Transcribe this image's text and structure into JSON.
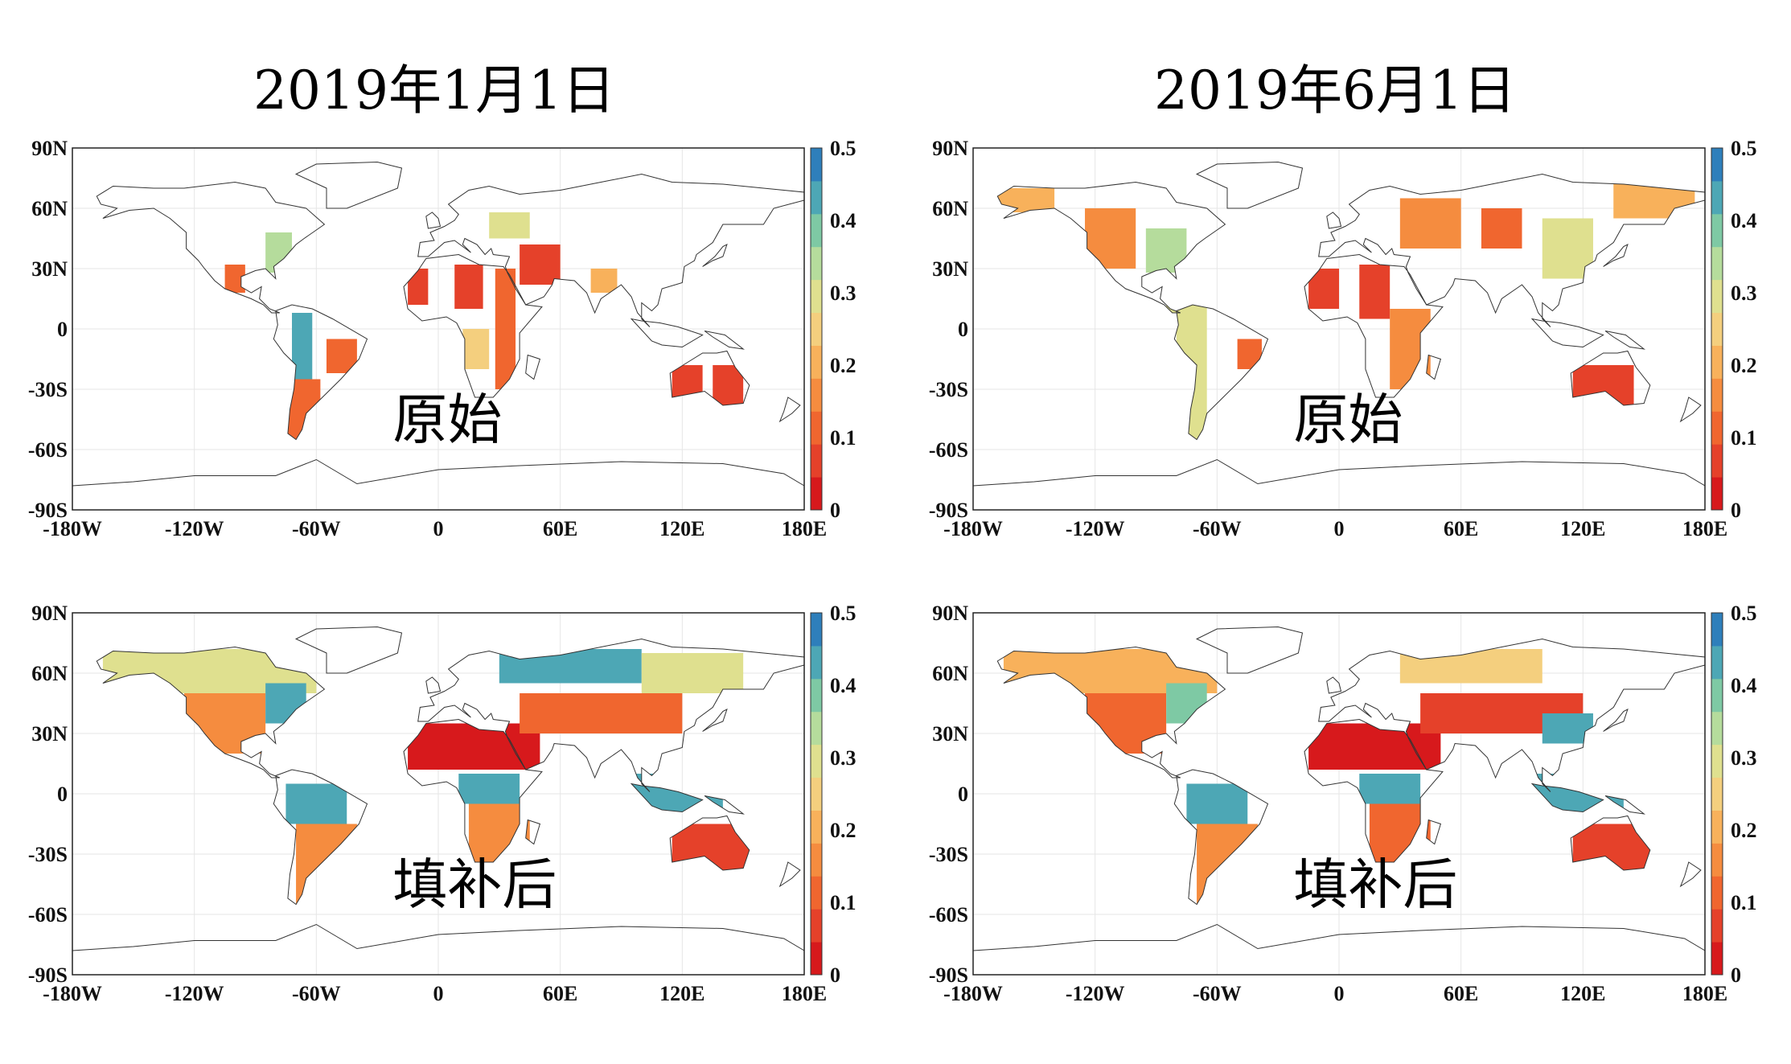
{
  "column_titles": [
    "2019年1月1日",
    "2019年6月1日"
  ],
  "panel_labels": {
    "original": "原始",
    "filled": "填补后"
  },
  "colorbar": {
    "min": 0,
    "max": 0.5,
    "tick_labels": [
      "0.5",
      "0.4",
      "0.3",
      "0.2",
      "0.1",
      "0"
    ],
    "colors": [
      "#d7191c",
      "#e5412a",
      "#f0662f",
      "#f58c3f",
      "#f8b15b",
      "#f4cf7e",
      "#dfe08f",
      "#b5dc9c",
      "#7ec9a4",
      "#4da7b5",
      "#2e7fbb"
    ]
  },
  "chart_data": [
    {
      "type": "heatmap",
      "panel": "top-left",
      "date": "2019年1月1日",
      "label": "原始",
      "x_ticks": [
        "-180W",
        "-120W",
        "-60W",
        "0",
        "60E",
        "120E",
        "180E"
      ],
      "y_ticks": [
        "90N",
        "60N",
        "30N",
        "0",
        "-30S",
        "-60S",
        "-90S"
      ],
      "xlim": [
        -180,
        180
      ],
      "ylim": [
        -90,
        90
      ],
      "clim": [
        0,
        0.5
      ],
      "data_regions": [
        {
          "lon": [
            -105,
            -95
          ],
          "lat": [
            18,
            32
          ],
          "value": 0.12
        },
        {
          "lon": [
            -85,
            -72
          ],
          "lat": [
            28,
            48
          ],
          "value": 0.35
        },
        {
          "lon": [
            -72,
            -62
          ],
          "lat": [
            -25,
            8
          ],
          "value": 0.45
        },
        {
          "lon": [
            -75,
            -58
          ],
          "lat": [
            -55,
            -25
          ],
          "value": 0.12
        },
        {
          "lon": [
            -55,
            -40
          ],
          "lat": [
            -22,
            -5
          ],
          "value": 0.12
        },
        {
          "lon": [
            -15,
            -5
          ],
          "lat": [
            12,
            30
          ],
          "value": 0.05
        },
        {
          "lon": [
            8,
            22
          ],
          "lat": [
            10,
            32
          ],
          "value": 0.05
        },
        {
          "lon": [
            28,
            38
          ],
          "lat": [
            -30,
            30
          ],
          "value": 0.12
        },
        {
          "lon": [
            12,
            25
          ],
          "lat": [
            -20,
            0
          ],
          "value": 0.25
        },
        {
          "lon": [
            40,
            60
          ],
          "lat": [
            22,
            42
          ],
          "value": 0.08
        },
        {
          "lon": [
            75,
            88
          ],
          "lat": [
            18,
            30
          ],
          "value": 0.2
        },
        {
          "lon": [
            115,
            130
          ],
          "lat": [
            -35,
            -18
          ],
          "value": 0.05
        },
        {
          "lon": [
            135,
            150
          ],
          "lat": [
            -38,
            -18
          ],
          "value": 0.05
        },
        {
          "lon": [
            25,
            45
          ],
          "lat": [
            45,
            58
          ],
          "value": 0.3
        }
      ]
    },
    {
      "type": "heatmap",
      "panel": "top-right",
      "date": "2019年6月1日",
      "label": "原始",
      "x_ticks": [
        "-180W",
        "-120W",
        "-60W",
        "0",
        "60E",
        "120E",
        "180E"
      ],
      "y_ticks": [
        "90N",
        "60N",
        "30N",
        "0",
        "-30S",
        "-60S",
        "-90S"
      ],
      "xlim": [
        -180,
        180
      ],
      "ylim": [
        -90,
        90
      ],
      "clim": [
        0,
        0.5
      ],
      "data_regions": [
        {
          "lon": [
            -170,
            -140
          ],
          "lat": [
            58,
            70
          ],
          "value": 0.22
        },
        {
          "lon": [
            -125,
            -100
          ],
          "lat": [
            30,
            60
          ],
          "value": 0.18
        },
        {
          "lon": [
            -95,
            -75
          ],
          "lat": [
            28,
            50
          ],
          "value": 0.35
        },
        {
          "lon": [
            -85,
            -65
          ],
          "lat": [
            5,
            20
          ],
          "value": 0.3
        },
        {
          "lon": [
            -80,
            -65
          ],
          "lat": [
            -55,
            5
          ],
          "value": 0.3
        },
        {
          "lon": [
            -50,
            -38
          ],
          "lat": [
            -20,
            -5
          ],
          "value": 0.12
        },
        {
          "lon": [
            -15,
            0
          ],
          "lat": [
            10,
            30
          ],
          "value": 0.05
        },
        {
          "lon": [
            10,
            25
          ],
          "lat": [
            5,
            32
          ],
          "value": 0.05
        },
        {
          "lon": [
            25,
            45
          ],
          "lat": [
            -30,
            10
          ],
          "value": 0.15
        },
        {
          "lon": [
            30,
            60
          ],
          "lat": [
            40,
            65
          ],
          "value": 0.18
        },
        {
          "lon": [
            70,
            90
          ],
          "lat": [
            40,
            60
          ],
          "value": 0.1
        },
        {
          "lon": [
            100,
            125
          ],
          "lat": [
            25,
            55
          ],
          "value": 0.3
        },
        {
          "lon": [
            135,
            175
          ],
          "lat": [
            55,
            72
          ],
          "value": 0.2
        },
        {
          "lon": [
            115,
            145
          ],
          "lat": [
            -38,
            -18
          ],
          "value": 0.08
        }
      ]
    },
    {
      "type": "heatmap",
      "panel": "bottom-left",
      "date": "2019年1月1日",
      "label": "填补后",
      "x_ticks": [
        "-180W",
        "-120W",
        "-60W",
        "0",
        "60E",
        "120E",
        "180E"
      ],
      "y_ticks": [
        "90N",
        "60N",
        "30N",
        "0",
        "-30S",
        "-60S",
        "-90S"
      ],
      "xlim": [
        -180,
        180
      ],
      "ylim": [
        -90,
        90
      ],
      "clim": [
        0,
        0.5
      ],
      "data_regions": [
        {
          "lon": [
            -165,
            -60
          ],
          "lat": [
            50,
            72
          ],
          "value": 0.3
        },
        {
          "lon": [
            -125,
            -85
          ],
          "lat": [
            20,
            50
          ],
          "value": 0.15
        },
        {
          "lon": [
            -85,
            -65
          ],
          "lat": [
            35,
            55
          ],
          "value": 0.42
        },
        {
          "lon": [
            -75,
            -45
          ],
          "lat": [
            -15,
            5
          ],
          "value": 0.45
        },
        {
          "lon": [
            -70,
            -40
          ],
          "lat": [
            -55,
            -15
          ],
          "value": 0.15
        },
        {
          "lon": [
            -15,
            50
          ],
          "lat": [
            12,
            35
          ],
          "value": 0.03
        },
        {
          "lon": [
            10,
            40
          ],
          "lat": [
            -5,
            10
          ],
          "value": 0.45
        },
        {
          "lon": [
            15,
            45
          ],
          "lat": [
            -35,
            -5
          ],
          "value": 0.15
        },
        {
          "lon": [
            30,
            100
          ],
          "lat": [
            55,
            72
          ],
          "value": 0.45
        },
        {
          "lon": [
            40,
            120
          ],
          "lat": [
            30,
            50
          ],
          "value": 0.12
        },
        {
          "lon": [
            100,
            150
          ],
          "lat": [
            50,
            70
          ],
          "value": 0.3
        },
        {
          "lon": [
            95,
            140
          ],
          "lat": [
            -10,
            10
          ],
          "value": 0.45
        },
        {
          "lon": [
            115,
            153
          ],
          "lat": [
            -38,
            -15
          ],
          "value": 0.08
        }
      ]
    },
    {
      "type": "heatmap",
      "panel": "bottom-right",
      "date": "2019年6月1日",
      "label": "填补后",
      "x_ticks": [
        "-180W",
        "-120W",
        "-60W",
        "0",
        "60E",
        "120E",
        "180E"
      ],
      "y_ticks": [
        "90N",
        "60N",
        "30N",
        "0",
        "-30S",
        "-60S",
        "-90S"
      ],
      "xlim": [
        -180,
        180
      ],
      "ylim": [
        -90,
        90
      ],
      "clim": [
        0,
        0.5
      ],
      "data_regions": [
        {
          "lon": [
            -165,
            -60
          ],
          "lat": [
            50,
            72
          ],
          "value": 0.22
        },
        {
          "lon": [
            -125,
            -85
          ],
          "lat": [
            20,
            50
          ],
          "value": 0.12
        },
        {
          "lon": [
            -85,
            -65
          ],
          "lat": [
            35,
            55
          ],
          "value": 0.4
        },
        {
          "lon": [
            -75,
            -45
          ],
          "lat": [
            -15,
            5
          ],
          "value": 0.45
        },
        {
          "lon": [
            -70,
            -40
          ],
          "lat": [
            -55,
            -15
          ],
          "value": 0.15
        },
        {
          "lon": [
            -15,
            50
          ],
          "lat": [
            12,
            35
          ],
          "value": 0.03
        },
        {
          "lon": [
            10,
            40
          ],
          "lat": [
            -5,
            10
          ],
          "value": 0.45
        },
        {
          "lon": [
            15,
            45
          ],
          "lat": [
            -35,
            -5
          ],
          "value": 0.12
        },
        {
          "lon": [
            30,
            100
          ],
          "lat": [
            55,
            72
          ],
          "value": 0.25
        },
        {
          "lon": [
            40,
            120
          ],
          "lat": [
            30,
            50
          ],
          "value": 0.05
        },
        {
          "lon": [
            100,
            125
          ],
          "lat": [
            25,
            40
          ],
          "value": 0.45
        },
        {
          "lon": [
            95,
            140
          ],
          "lat": [
            -10,
            10
          ],
          "value": 0.45
        },
        {
          "lon": [
            115,
            153
          ],
          "lat": [
            -38,
            -15
          ],
          "value": 0.05
        }
      ]
    }
  ]
}
